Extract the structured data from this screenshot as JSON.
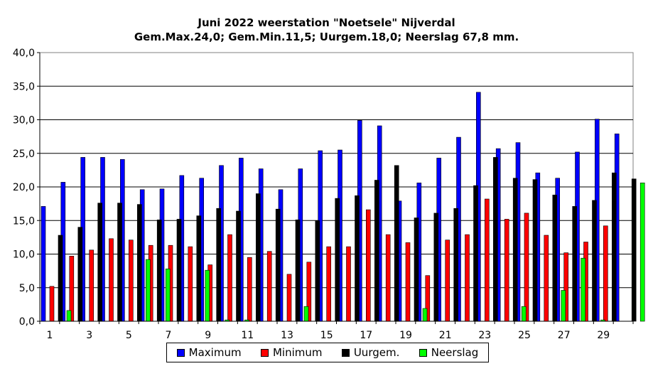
{
  "chart_data": {
    "type": "bar",
    "title": "Juni 2022 weerstation \"Noetsele\" Nijverdal",
    "subtitle": "Gem.Max.24,0; Gem.Min.11,5; Uurgem.18,0; Neerslag 67,8 mm.",
    "xlabel": "",
    "ylabel": "",
    "ylim": [
      0,
      40
    ],
    "y_ticks": [
      "0,0",
      "5,0",
      "10,0",
      "15,0",
      "20,0",
      "25,0",
      "30,0",
      "35,0",
      "40,0"
    ],
    "x_tick_labels": [
      "1",
      "3",
      "5",
      "7",
      "9",
      "11",
      "13",
      "15",
      "17",
      "19",
      "21",
      "23",
      "25",
      "27",
      "29"
    ],
    "categories": [
      "1",
      "2",
      "3",
      "4",
      "5",
      "6",
      "7",
      "8",
      "9",
      "10",
      "11",
      "12",
      "13",
      "14",
      "15",
      "16",
      "17",
      "18",
      "19",
      "20",
      "21",
      "22",
      "23",
      "24",
      "25",
      "26",
      "27",
      "28",
      "29",
      "30"
    ],
    "grid": true,
    "legend_position": "bottom",
    "series": [
      {
        "name": "Maximum",
        "color": "#0000ff",
        "values": [
          17.1,
          20.7,
          24.4,
          24.4,
          24.1,
          19.6,
          19.7,
          21.7,
          21.3,
          23.2,
          24.3,
          22.7,
          19.6,
          22.7,
          25.4,
          25.5,
          29.9,
          29.1,
          17.9,
          20.6,
          24.3,
          27.4,
          34.1,
          25.7,
          26.6,
          22.1,
          21.3,
          25.2,
          30.1,
          27.9
        ]
      },
      {
        "name": "Minimum",
        "color": "#ff0000",
        "values": [
          5.2,
          9.7,
          10.6,
          12.3,
          12.1,
          11.3,
          11.3,
          11.1,
          8.4,
          12.9,
          9.5,
          10.4,
          7.0,
          8.8,
          11.1,
          11.1,
          16.6,
          12.9,
          11.7,
          6.8,
          12.1,
          12.9,
          18.2,
          15.2,
          16.1,
          12.8,
          10.2,
          11.8,
          14.2,
          0
        ]
      },
      {
        "name": "Uurgem.",
        "color": "#000000",
        "values": [
          12.8,
          14.0,
          17.6,
          17.6,
          17.4,
          15.1,
          15.2,
          15.7,
          16.8,
          16.4,
          19.0,
          16.7,
          15.1,
          15.0,
          18.3,
          18.7,
          21.0,
          23.2,
          15.4,
          16.1,
          16.8,
          20.2,
          24.4,
          21.3,
          21.1,
          18.8,
          17.1,
          18.0,
          22.1,
          21.2
        ]
      },
      {
        "name": "Neerslag",
        "color": "#00ff00",
        "values": [
          1.6,
          0,
          0,
          0,
          9.2,
          7.8,
          0,
          7.6,
          0.2,
          0.2,
          0,
          0,
          2.2,
          0,
          0,
          0,
          0,
          0,
          1.9,
          0,
          0,
          0,
          0,
          2.2,
          0,
          4.6,
          9.4,
          0.2,
          0,
          20.6
        ]
      }
    ]
  }
}
